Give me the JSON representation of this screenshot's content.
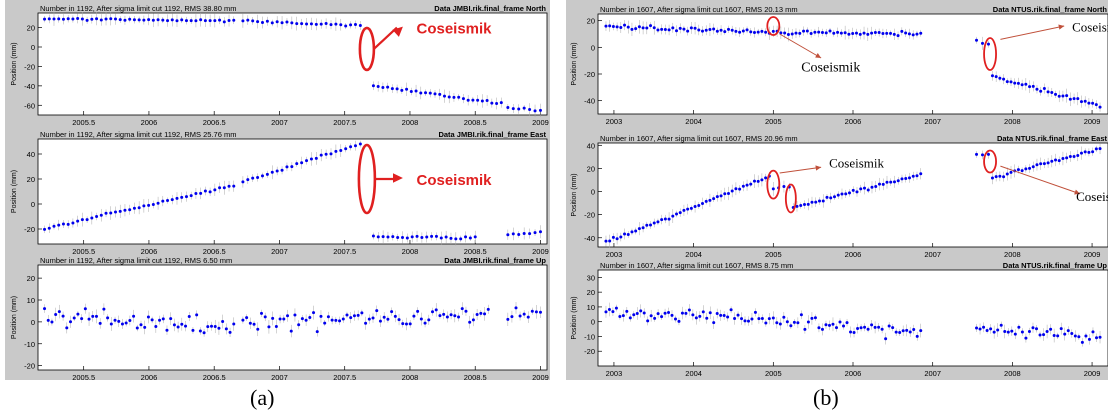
{
  "captions": {
    "a": "(a)",
    "b": "(b)"
  },
  "annotation_color": "#e02020",
  "data_color": "#0000ee",
  "errorbar_color": "#a8a8a8",
  "figures": {
    "a": {
      "panels": [
        {
          "header": "Number in    1192, After sigma limit cut    1192, RMS  38.80 mm",
          "title": "Data JMBI.rik.final_frame North",
          "ylabel": "Position (mm)"
        },
        {
          "header": "Number in    1192, After sigma limit cut    1192, RMS  25.76 mm",
          "title": "Data JMBI.rik.final_frame East",
          "ylabel": "Position (mm)"
        },
        {
          "header": "Number in    1192, After sigma limit cut    1192, RMS  6.50 mm",
          "title": "Data JMBI.rik.final_frame Up",
          "ylabel": "Position (mm)"
        }
      ],
      "annotations": [
        {
          "panel": 0,
          "text": "Coseismik"
        },
        {
          "panel": 1,
          "text": "Coseismik"
        }
      ]
    },
    "b": {
      "panels": [
        {
          "header": "Number in    1607, After sigma limit cut    1607, RMS  20.13 mm",
          "title": "Data NTUS.rik.final_frame North",
          "ylabel": "Position (mm)"
        },
        {
          "header": "Number in    1607, After sigma limit cut    1607, RMS  20.96 mm",
          "title": "Data NTUS.rik.final_frame East",
          "ylabel": "Position (mm)"
        },
        {
          "header": "Number in    1607, After sigma limit cut    1607, RMS  8.75 mm",
          "title": "Data NTUS.rik.final_frame Up",
          "ylabel": "Position (mm)"
        }
      ],
      "annotations": [
        {
          "panel": 0,
          "text": "Coseismik"
        },
        {
          "panel": 0,
          "text": "Coseismik"
        },
        {
          "panel": 1,
          "text": "Coseismik"
        },
        {
          "panel": 1,
          "text": "Coseismik"
        }
      ]
    }
  },
  "chart_data": [
    {
      "type": "scatter",
      "title": "Data JMBI.rik.final_frame North",
      "ylabel": "Position (mm)",
      "xlim": [
        2005.15,
        2009.05
      ],
      "ylim": [
        -70,
        35
      ],
      "xticks": [
        2005.5,
        2006,
        2006.5,
        2007,
        2007.5,
        2008,
        2008.5,
        2009
      ],
      "xticklabels": [
        "2005.5",
        "2006",
        "2006.5",
        "2007",
        "2007.5",
        "2008",
        "2008.5",
        "2009"
      ],
      "yticks": [
        -60,
        -40,
        -20,
        0,
        20
      ],
      "segments": [
        {
          "x": [
            2005.2,
            2006.65
          ],
          "y": [
            29,
            27
          ],
          "noise": 1.5
        },
        {
          "x": [
            2006.72,
            2007.62
          ],
          "y": [
            27,
            22
          ],
          "noise": 1.5
        },
        {
          "x": [
            2007.72,
            2008.7
          ],
          "y": [
            -40,
            -58
          ],
          "noise": 2
        },
        {
          "x": [
            2008.75,
            2009.0
          ],
          "y": [
            -62,
            -66
          ],
          "noise": 2
        }
      ]
    },
    {
      "type": "scatter",
      "title": "Data JMBI.rik.final_frame East",
      "ylabel": "Position (mm)",
      "xlim": [
        2005.15,
        2009.05
      ],
      "ylim": [
        -32,
        52
      ],
      "xticks": [
        2005.5,
        2006,
        2006.5,
        2007,
        2007.5,
        2008,
        2008.5,
        2009
      ],
      "xticklabels": [
        "2005.5",
        "2006",
        "2006.5",
        "2007",
        "2007.5",
        "2008",
        "2008.5",
        "2009"
      ],
      "yticks": [
        -20,
        0,
        20,
        40
      ],
      "segments": [
        {
          "x": [
            2005.2,
            2006.65
          ],
          "y": [
            -20,
            15
          ],
          "noise": 1.5
        },
        {
          "x": [
            2006.72,
            2007.62
          ],
          "y": [
            18,
            48
          ],
          "noise": 1.5
        },
        {
          "x": [
            2007.72,
            2008.5
          ],
          "y": [
            -26,
            -27
          ],
          "noise": 2
        },
        {
          "x": [
            2008.75,
            2009.0
          ],
          "y": [
            -25,
            -23
          ],
          "noise": 2
        }
      ]
    },
    {
      "type": "scatter",
      "title": "Data JMBI.rik.final_frame Up",
      "ylabel": "Position (mm)",
      "xlim": [
        2005.15,
        2009.05
      ],
      "ylim": [
        -22,
        26
      ],
      "xticks": [
        2005.5,
        2006,
        2006.5,
        2007,
        2007.5,
        2008,
        2008.5,
        2009
      ],
      "xticklabels": [
        "2005.5",
        "2006",
        "2006.5",
        "2007",
        "2007.5",
        "2008",
        "2008.5",
        "2009"
      ],
      "yticks": [
        -20,
        -10,
        0,
        10,
        20
      ],
      "segments": [
        {
          "x": [
            2005.2,
            2006.65
          ],
          "y": [
            3,
            -3
          ],
          "noise": 7
        },
        {
          "x": [
            2006.72,
            2008.6
          ],
          "y": [
            0,
            3
          ],
          "noise": 7
        },
        {
          "x": [
            2008.75,
            2009.0
          ],
          "y": [
            5,
            2
          ],
          "noise": 7
        }
      ]
    },
    {
      "type": "scatter",
      "title": "Data NTUS.rik.final_frame North",
      "ylabel": "Position (mm)",
      "xlim": [
        2002.8,
        2009.2
      ],
      "ylim": [
        -50,
        25
      ],
      "xticks": [
        2003,
        2004,
        2005,
        2006,
        2007,
        2008,
        2009
      ],
      "xticklabels": [
        "2003",
        "2004",
        "2005",
        "2006",
        "2007",
        "2008",
        "2009"
      ],
      "yticks": [
        -40,
        -20,
        0,
        20
      ],
      "segments": [
        {
          "x": [
            2002.9,
            2004.95
          ],
          "y": [
            16,
            11
          ],
          "noise": 2.5
        },
        {
          "x": [
            2005.0,
            2006.85
          ],
          "y": [
            11,
            10
          ],
          "noise": 2.5
        },
        {
          "x": [
            2007.55,
            2007.7
          ],
          "y": [
            6,
            2
          ],
          "noise": 2
        },
        {
          "x": [
            2007.75,
            2009.1
          ],
          "y": [
            -22,
            -44
          ],
          "noise": 2.5
        }
      ]
    },
    {
      "type": "scatter",
      "title": "Data NTUS.rik.final_frame East",
      "ylabel": "Position (mm)",
      "xlim": [
        2002.8,
        2009.2
      ],
      "ylim": [
        -48,
        42
      ],
      "xticks": [
        2003,
        2004,
        2005,
        2006,
        2007,
        2008,
        2009
      ],
      "xticklabels": [
        "2003",
        "2004",
        "2005",
        "2006",
        "2007",
        "2008",
        "2009"
      ],
      "yticks": [
        -40,
        -20,
        0,
        20,
        40
      ],
      "segments": [
        {
          "x": [
            2002.9,
            2004.95
          ],
          "y": [
            -44,
            13
          ],
          "noise": 2
        },
        {
          "x": [
            2005.0,
            2005.2
          ],
          "y": [
            3,
            5
          ],
          "noise": 2
        },
        {
          "x": [
            2005.25,
            2006.85
          ],
          "y": [
            -14,
            15
          ],
          "noise": 2
        },
        {
          "x": [
            2007.55,
            2007.7
          ],
          "y": [
            32,
            33
          ],
          "noise": 2
        },
        {
          "x": [
            2007.75,
            2009.1
          ],
          "y": [
            12,
            37
          ],
          "noise": 2
        }
      ]
    },
    {
      "type": "scatter",
      "title": "Data NTUS.rik.final_frame Up",
      "ylabel": "Position (mm)",
      "xlim": [
        2002.8,
        2009.2
      ],
      "ylim": [
        -30,
        35
      ],
      "xticks": [
        2003,
        2004,
        2005,
        2006,
        2007,
        2008,
        2009
      ],
      "xticklabels": [
        "2003",
        "2004",
        "2005",
        "2006",
        "2007",
        "2008",
        "2009"
      ],
      "yticks": [
        -20,
        -10,
        0,
        10,
        20,
        30
      ],
      "segments": [
        {
          "x": [
            2002.9,
            2004.95
          ],
          "y": [
            6,
            2
          ],
          "noise": 7
        },
        {
          "x": [
            2005.0,
            2006.85
          ],
          "y": [
            2,
            -8
          ],
          "noise": 7
        },
        {
          "x": [
            2007.55,
            2009.1
          ],
          "y": [
            -5,
            -10
          ],
          "noise": 7
        }
      ]
    }
  ]
}
